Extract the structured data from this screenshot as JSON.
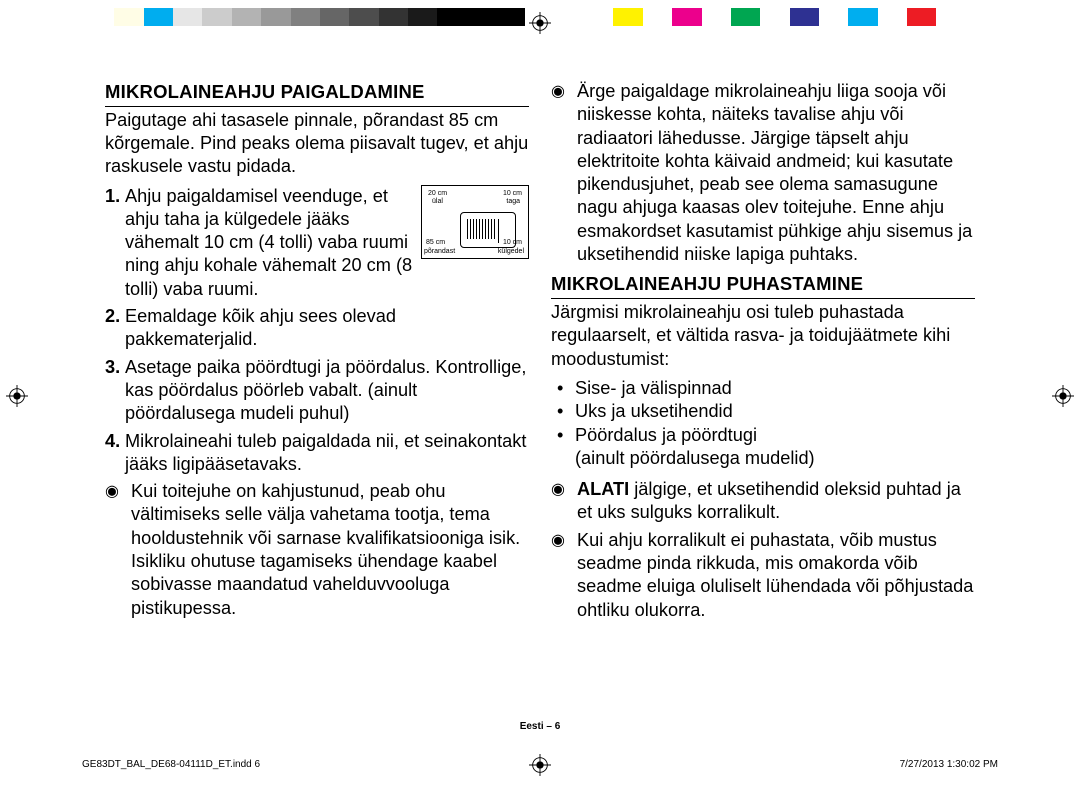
{
  "colorbar": [
    "#ffffff",
    "#fffde6",
    "#00adef",
    "#e6e6e6",
    "#cccccc",
    "#b3b3b3",
    "#999999",
    "#808080",
    "#666666",
    "#4d4d4d",
    "#333333",
    "#1a1a1a",
    "#000000",
    "#000000",
    "#000000",
    "#ffffff",
    "#ffffff",
    "#ffffff",
    "#fff200",
    "#ffffff",
    "#ec008c",
    "#ffffff",
    "#00a651",
    "#ffffff",
    "#2e3192",
    "#ffffff",
    "#00aeef",
    "#ffffff",
    "#ed1c24",
    "#ffffff",
    "#ffffff"
  ],
  "left": {
    "heading": "MIKROLAINEAHJU PAIGALDAMINE",
    "intro": "Paigutage ahi tasasele pinnale, põrandast 85 cm kõrgemale. Pind peaks olema piisavalt tugev, et ahju raskusele vastu pidada.",
    "items": [
      {
        "n": "1.",
        "t": "Ahju paigaldamisel veenduge, et ahju taha ja külgedele jääks vähemalt 10 cm (4 tolli) vaba ruumi ning ahju kohale vähemalt 20 cm (8 tolli) vaba ruumi."
      },
      {
        "n": "2.",
        "t": "Eemaldage kõik ahju sees olevad pakkematerjalid."
      },
      {
        "n": "3.",
        "t": "Asetage paika pöördtugi ja pöördalus. Kontrollige, kas pöördalus pöörleb vabalt. (ainult pöördalusega mudeli puhul)"
      },
      {
        "n": "4.",
        "t": "Mikrolaineahi tuleb paigaldada nii, et seinakontakt jääks ligipääsetavaks."
      }
    ],
    "note": "Kui toitejuhe on kahjustunud, peab ohu vältimiseks selle välja vahetama tootja, tema hooldustehnik või sarnase kvalifikatsiooniga isik.\nIsikliku ohutuse tagamiseks ühendage kaabel sobivasse maandatud vahelduvvooluga pistikupessa.",
    "fig": {
      "top_left": "20 cm",
      "top_left_sub": "ülal",
      "top_right": "10 cm",
      "top_right_sub": "taga",
      "bot_left": "85 cm",
      "bot_left_sub": "põrandast",
      "bot_right": "10 cm",
      "bot_right_sub": "külgedel"
    }
  },
  "right": {
    "topnote": "Ärge paigaldage mikrolaineahju liiga sooja või niiskesse kohta, näiteks tavalise ahju või radiaatori lähedusse. Järgige täpselt ahju elektritoite kohta käivaid andmeid; kui kasutate pikendusjuhet, peab see olema samasugune nagu ahjuga kaasas olev toitejuhe. Enne ahju esmakordset kasutamist pühkige ahju sisemus ja uksetihendid niiske lapiga puhtaks.",
    "heading": "MIKROLAINEAHJU PUHASTAMINE",
    "intro": "Järgmisi mikrolaineahju osi tuleb puhastada regulaarselt, et vältida rasva- ja toidujäätmete kihi moodustumist:",
    "dots": [
      "Sise- ja välispinnad",
      "Uks ja uksetihendid",
      "Pöördalus ja pöördtugi\n(ainult pöördalusega mudelid)"
    ],
    "note2_bold": "ALATI",
    "note2_rest": " jälgige, et uksetihendid oleksid puhtad ja et uks sulguks korralikult.",
    "note3": "Kui ahju korralikult ei puhastata, võib mustus seadme pinda rikkuda, mis omakorda võib seadme eluiga oluliselt lühendada või põhjustada ohtliku olukorra."
  },
  "footer_center": "Eesti – 6",
  "footer_left": "GE83DT_BAL_DE68-04111D_ET.indd   6",
  "footer_right": "7/27/2013   1:30:02 PM"
}
